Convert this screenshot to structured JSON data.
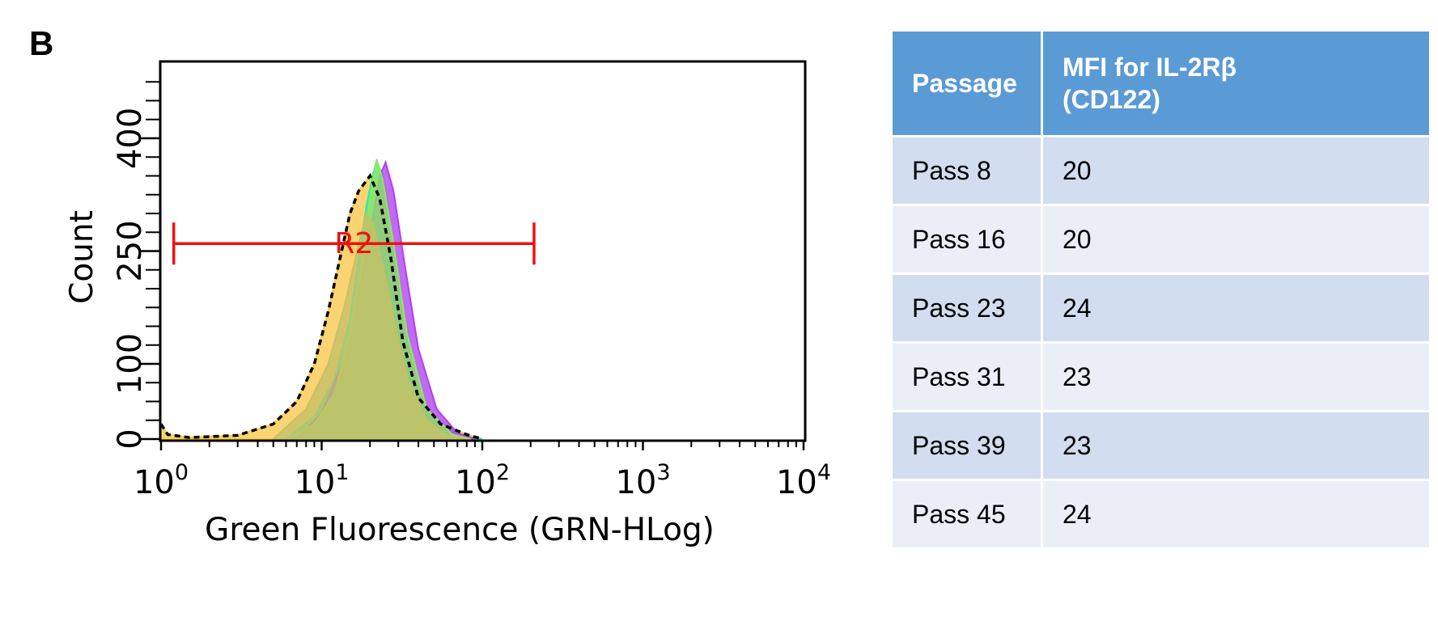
{
  "panel_label": "B",
  "chart_data": {
    "type": "area",
    "xlabel": "Green Fluorescence (GRN-HLog)",
    "ylabel": "Count",
    "xscale": "log",
    "xlim": [
      1,
      10000
    ],
    "ylim": [
      0,
      500
    ],
    "x_ticks": [
      {
        "value": 1,
        "base": "10",
        "exp": "0"
      },
      {
        "value": 10,
        "base": "10",
        "exp": "1"
      },
      {
        "value": 100,
        "base": "10",
        "exp": "2"
      },
      {
        "value": 1000,
        "base": "10",
        "exp": "3"
      },
      {
        "value": 10000,
        "base": "10",
        "exp": "4"
      }
    ],
    "y_ticks": [
      0,
      100,
      250,
      400
    ],
    "y_ticks_labeled": [
      "0",
      "100",
      "250",
      "400"
    ],
    "gate": {
      "label": "R2",
      "x_start": 1.2,
      "x_end": 210,
      "y": 260,
      "color": "#ee1111"
    },
    "series": [
      {
        "style": "filled",
        "color": "#f9c84a",
        "points": [
          [
            1.0,
            20
          ],
          [
            1.1,
            6
          ],
          [
            1.5,
            2
          ],
          [
            3,
            5
          ],
          [
            5,
            20
          ],
          [
            7,
            50
          ],
          [
            9,
            100
          ],
          [
            11,
            170
          ],
          [
            13,
            240
          ],
          [
            15,
            300
          ],
          [
            17,
            330
          ],
          [
            20,
            350
          ],
          [
            23,
            320
          ],
          [
            27,
            240
          ],
          [
            32,
            130
          ],
          [
            40,
            55
          ],
          [
            55,
            20
          ],
          [
            80,
            6
          ],
          [
            100,
            0
          ]
        ]
      },
      {
        "style": "filled",
        "color": "#30e8b0",
        "points": [
          [
            6,
            0
          ],
          [
            9,
            30
          ],
          [
            12,
            80
          ],
          [
            15,
            160
          ],
          [
            17,
            240
          ],
          [
            19,
            310
          ],
          [
            21,
            355
          ],
          [
            22,
            370
          ],
          [
            24,
            350
          ],
          [
            27,
            280
          ],
          [
            32,
            160
          ],
          [
            40,
            60
          ],
          [
            55,
            15
          ],
          [
            80,
            3
          ],
          [
            100,
            0
          ]
        ]
      },
      {
        "style": "filled",
        "color": "#b040f0",
        "points": [
          [
            7,
            0
          ],
          [
            10,
            35
          ],
          [
            14,
            110
          ],
          [
            18,
            220
          ],
          [
            21,
            300
          ],
          [
            23,
            350
          ],
          [
            25,
            368
          ],
          [
            28,
            330
          ],
          [
            33,
            230
          ],
          [
            40,
            120
          ],
          [
            52,
            40
          ],
          [
            70,
            8
          ],
          [
            90,
            0
          ]
        ]
      },
      {
        "style": "filled",
        "color": "#90e860",
        "points": [
          [
            6,
            0
          ],
          [
            9,
            20
          ],
          [
            12,
            60
          ],
          [
            15,
            140
          ],
          [
            18,
            240
          ],
          [
            20,
            320
          ],
          [
            22,
            372
          ],
          [
            24,
            345
          ],
          [
            28,
            260
          ],
          [
            34,
            140
          ],
          [
            45,
            40
          ],
          [
            65,
            6
          ],
          [
            85,
            0
          ]
        ]
      },
      {
        "style": "filled",
        "color": "#c6c066",
        "points": [
          [
            5,
            0
          ],
          [
            8,
            40
          ],
          [
            11,
            100
          ],
          [
            14,
            180
          ],
          [
            17,
            260
          ],
          [
            19,
            300
          ],
          [
            21,
            285
          ],
          [
            24,
            230
          ],
          [
            28,
            160
          ],
          [
            34,
            80
          ],
          [
            45,
            25
          ],
          [
            60,
            5
          ],
          [
            80,
            0
          ]
        ]
      },
      {
        "style": "dashed",
        "color": "#000000",
        "points": [
          [
            1.0,
            20
          ],
          [
            1.1,
            6
          ],
          [
            1.5,
            2
          ],
          [
            3,
            5
          ],
          [
            5,
            20
          ],
          [
            7,
            50
          ],
          [
            9,
            100
          ],
          [
            11,
            170
          ],
          [
            13,
            240
          ],
          [
            15,
            300
          ],
          [
            17,
            330
          ],
          [
            20,
            350
          ],
          [
            23,
            320
          ],
          [
            27,
            240
          ],
          [
            32,
            130
          ],
          [
            40,
            55
          ],
          [
            55,
            20
          ],
          [
            80,
            6
          ],
          [
            100,
            0
          ]
        ]
      }
    ]
  },
  "table": {
    "headers": [
      "Passage",
      "MFI for IL-2Rβ (CD122)"
    ],
    "header_line1": "MFI for IL-2Rβ",
    "header_line2": "(CD122)",
    "rows": [
      [
        "Pass 8",
        "20"
      ],
      [
        "Pass 16",
        "20"
      ],
      [
        "Pass 23",
        "24"
      ],
      [
        "Pass 31",
        "23"
      ],
      [
        "Pass 39",
        "23"
      ],
      [
        "Pass 45",
        "24"
      ]
    ]
  },
  "colors": {
    "header_bg": "#5b9bd5",
    "row_odd": "#d2deef",
    "row_even": "#eaeff7",
    "gate": "#ee1111"
  }
}
